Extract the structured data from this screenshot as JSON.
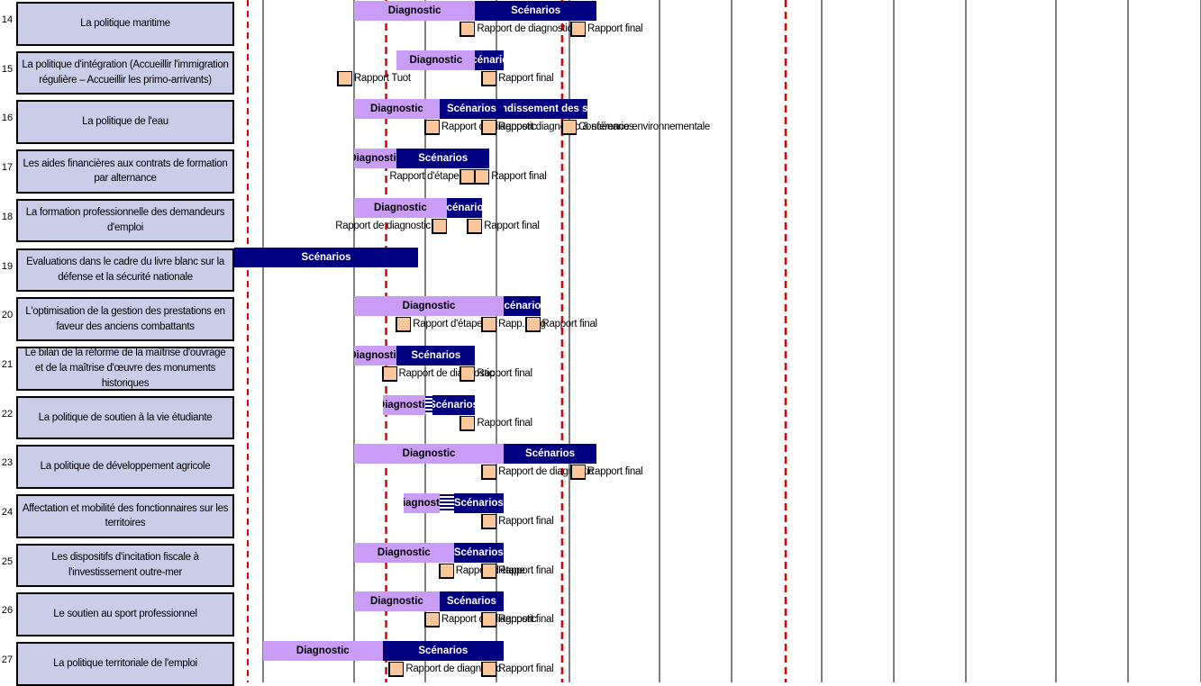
{
  "chart_data": {
    "type": "gantt",
    "columns_count": 11,
    "deadlines_at_column": [
      1.45,
      3.9,
      6.6
    ],
    "rows": [
      {
        "num": "14",
        "label": "La  politique maritime",
        "bars": [
          {
            "kind": "diagnostic",
            "label": "Diagnostic",
            "start": 1.0,
            "end": 2.7
          },
          {
            "kind": "scenarios",
            "label": "Scénarios",
            "start": 2.7,
            "end": 4.3
          }
        ],
        "milestones": [
          {
            "at": 2.6,
            "label": "Rapport de diagnostic"
          },
          {
            "at": 4.1,
            "label": "Rapport final"
          }
        ]
      },
      {
        "num": "15",
        "label": "La politique d'intégration (Accueillir l'immigration régulière – Accueillir les primo-arrivants)",
        "bars": [
          {
            "kind": "diagnostic",
            "label": "Diagnostic",
            "start": 1.6,
            "end": 2.7
          },
          {
            "kind": "scenarios",
            "label": "Scénarios",
            "start": 2.7,
            "end": 3.1
          }
        ],
        "milestones": [
          {
            "at": 0.9,
            "label": "Rapport Tuot"
          },
          {
            "at": 2.9,
            "label": "Rapport final"
          }
        ]
      },
      {
        "num": "16",
        "label": "La politique de l'eau",
        "bars": [
          {
            "kind": "diagnostic",
            "label": "Diagnostic",
            "start": 1.0,
            "end": 2.2
          },
          {
            "kind": "scenarios",
            "label": "Scénarios",
            "start": 2.2,
            "end": 3.1
          },
          {
            "kind": "scenarios",
            "label": "Approfondissement des scénarios",
            "start": 3.1,
            "end": 4.2
          }
        ],
        "milestones": [
          {
            "at": 2.1,
            "label": "Rapport de diagnostic"
          },
          {
            "at": 2.9,
            "label": "Rapport diagnostic & scénarios"
          },
          {
            "at": 4.0,
            "label": "Conférence environnementale"
          }
        ]
      },
      {
        "num": "17",
        "label": "Les aides financières aux contrats de formation par alternance",
        "bars": [
          {
            "kind": "diagnostic",
            "label": "Diagnostic",
            "start": 1.0,
            "end": 1.6
          },
          {
            "kind": "scenarios",
            "label": "Scénarios",
            "start": 1.6,
            "end": 2.9
          }
        ],
        "milestones": [
          {
            "at": 2.6,
            "label": "Rapport d'étape",
            "label_left": true
          },
          {
            "at": 2.8,
            "label": "Rapport final"
          }
        ]
      },
      {
        "num": "18",
        "label": "La formation professionnelle des demandeurs d'emploi",
        "bars": [
          {
            "kind": "diagnostic",
            "label": "Diagnostic",
            "start": 1.0,
            "end": 2.3
          },
          {
            "kind": "scenarios",
            "label": "Scénarios",
            "start": 2.3,
            "end": 2.8
          }
        ],
        "milestones": [
          {
            "at": 2.2,
            "label": "Rapport de diagnostic",
            "label_left": true
          },
          {
            "at": 2.7,
            "label": "Rapport final"
          }
        ]
      },
      {
        "num": "19",
        "label": "Evaluations dans le cadre du livre blanc sur la défense et la sécurité nationale",
        "bars": [
          {
            "kind": "scenarios",
            "label": "Scénarios",
            "start": -0.2,
            "end": 1.9
          }
        ],
        "milestones": []
      },
      {
        "num": "20",
        "label": "L'optimisation de la gestion des prestations en faveur des anciens combattants",
        "bars": [
          {
            "kind": "diagnostic",
            "label": "Diagnostic",
            "start": 1.0,
            "end": 3.1
          },
          {
            "kind": "scenarios",
            "label": "Scénarios",
            "start": 3.1,
            "end": 3.6
          }
        ],
        "milestones": [
          {
            "at": 1.7,
            "label": "Rapport d'étape"
          },
          {
            "at": 2.9,
            "label": "Rapp. diag"
          },
          {
            "at": 3.5,
            "label": "Rapport final"
          }
        ]
      },
      {
        "num": "21",
        "label": "Le bilan de la réforme de la maîtrise d'ouvrage et de la maîtrise d'œuvre des monuments historiques",
        "bars": [
          {
            "kind": "diagnostic",
            "label": "Diagnostic",
            "start": 1.0,
            "end": 1.6
          },
          {
            "kind": "scenarios",
            "label": "Scénarios",
            "start": 1.6,
            "end": 2.7
          }
        ],
        "milestones": [
          {
            "at": 1.5,
            "label": "Rapport de diagnostic"
          },
          {
            "at": 2.6,
            "label": "Rapport final"
          }
        ]
      },
      {
        "num": "22",
        "label": "La politique de soutien à la vie étudiante",
        "bars": [
          {
            "kind": "diagnostic",
            "label": "Diagnostic",
            "start": 1.4,
            "end": 2.0
          },
          {
            "kind": "scenarios",
            "label": "Scénarios",
            "start": 2.1,
            "end": 2.7
          }
        ],
        "hatch": {
          "start": 2.0,
          "end": 2.1
        },
        "milestones": [
          {
            "at": 2.6,
            "label": "Rapport final"
          }
        ]
      },
      {
        "num": "23",
        "label": "La politique de développement agricole",
        "bars": [
          {
            "kind": "diagnostic",
            "label": "Diagnostic",
            "start": 1.0,
            "end": 3.1
          },
          {
            "kind": "scenarios",
            "label": "Scénarios",
            "start": 3.1,
            "end": 4.3
          }
        ],
        "milestones": [
          {
            "at": 2.9,
            "label": "Rapport de diagnostic"
          },
          {
            "at": 4.1,
            "label": "Rapport final"
          }
        ]
      },
      {
        "num": "24",
        "label": "Affectation et mobilité des fonctionnaires sur les territoires",
        "bars": [
          {
            "kind": "diagnostic",
            "label": "Diagnostic",
            "start": 1.7,
            "end": 2.2
          },
          {
            "kind": "scenarios",
            "label": "Scénarios",
            "start": 2.4,
            "end": 3.1
          }
        ],
        "hatch": {
          "start": 2.2,
          "end": 2.4
        },
        "milestones": [
          {
            "at": 2.9,
            "label": "Rapport final"
          }
        ]
      },
      {
        "num": "25",
        "label": "Les dispositifs d'incitation fiscale à l'investissement outre-mer",
        "bars": [
          {
            "kind": "diagnostic",
            "label": "Diagnostic",
            "start": 1.0,
            "end": 2.4
          },
          {
            "kind": "scenarios",
            "label": "Scénarios",
            "start": 2.4,
            "end": 3.1
          }
        ],
        "milestones": [
          {
            "at": 2.3,
            "label": "Rapport d'étape"
          },
          {
            "at": 2.9,
            "label": "Rapport final"
          }
        ]
      },
      {
        "num": "26",
        "label": "Le soutien au sport professionnel",
        "bars": [
          {
            "kind": "diagnostic",
            "label": "Diagnostic",
            "start": 1.0,
            "end": 2.2
          },
          {
            "kind": "scenarios",
            "label": "Scénarios",
            "start": 2.2,
            "end": 3.1
          }
        ],
        "milestones": [
          {
            "at": 2.1,
            "label": "Rapport de diagnostic"
          },
          {
            "at": 2.9,
            "label": "Rapport final"
          }
        ]
      },
      {
        "num": "27",
        "label": "La politique territoriale de l'emploi",
        "bars": [
          {
            "kind": "diagnostic",
            "label": "Diagnostic",
            "start": 0.0,
            "end": 1.4
          },
          {
            "kind": "scenarios",
            "label": "Scénarios",
            "start": 1.4,
            "end": 3.1
          }
        ],
        "milestones": [
          {
            "at": 1.6,
            "label": "Rapport de diagnostic"
          },
          {
            "at": 2.9,
            "label": "Rapport final"
          }
        ]
      }
    ]
  },
  "colors": {
    "diagnostic": "#c99cf5",
    "scenarios": "#000080",
    "deadline": "#e00000",
    "milestone": "#fbc79a",
    "label_box": "#c9cde8"
  }
}
